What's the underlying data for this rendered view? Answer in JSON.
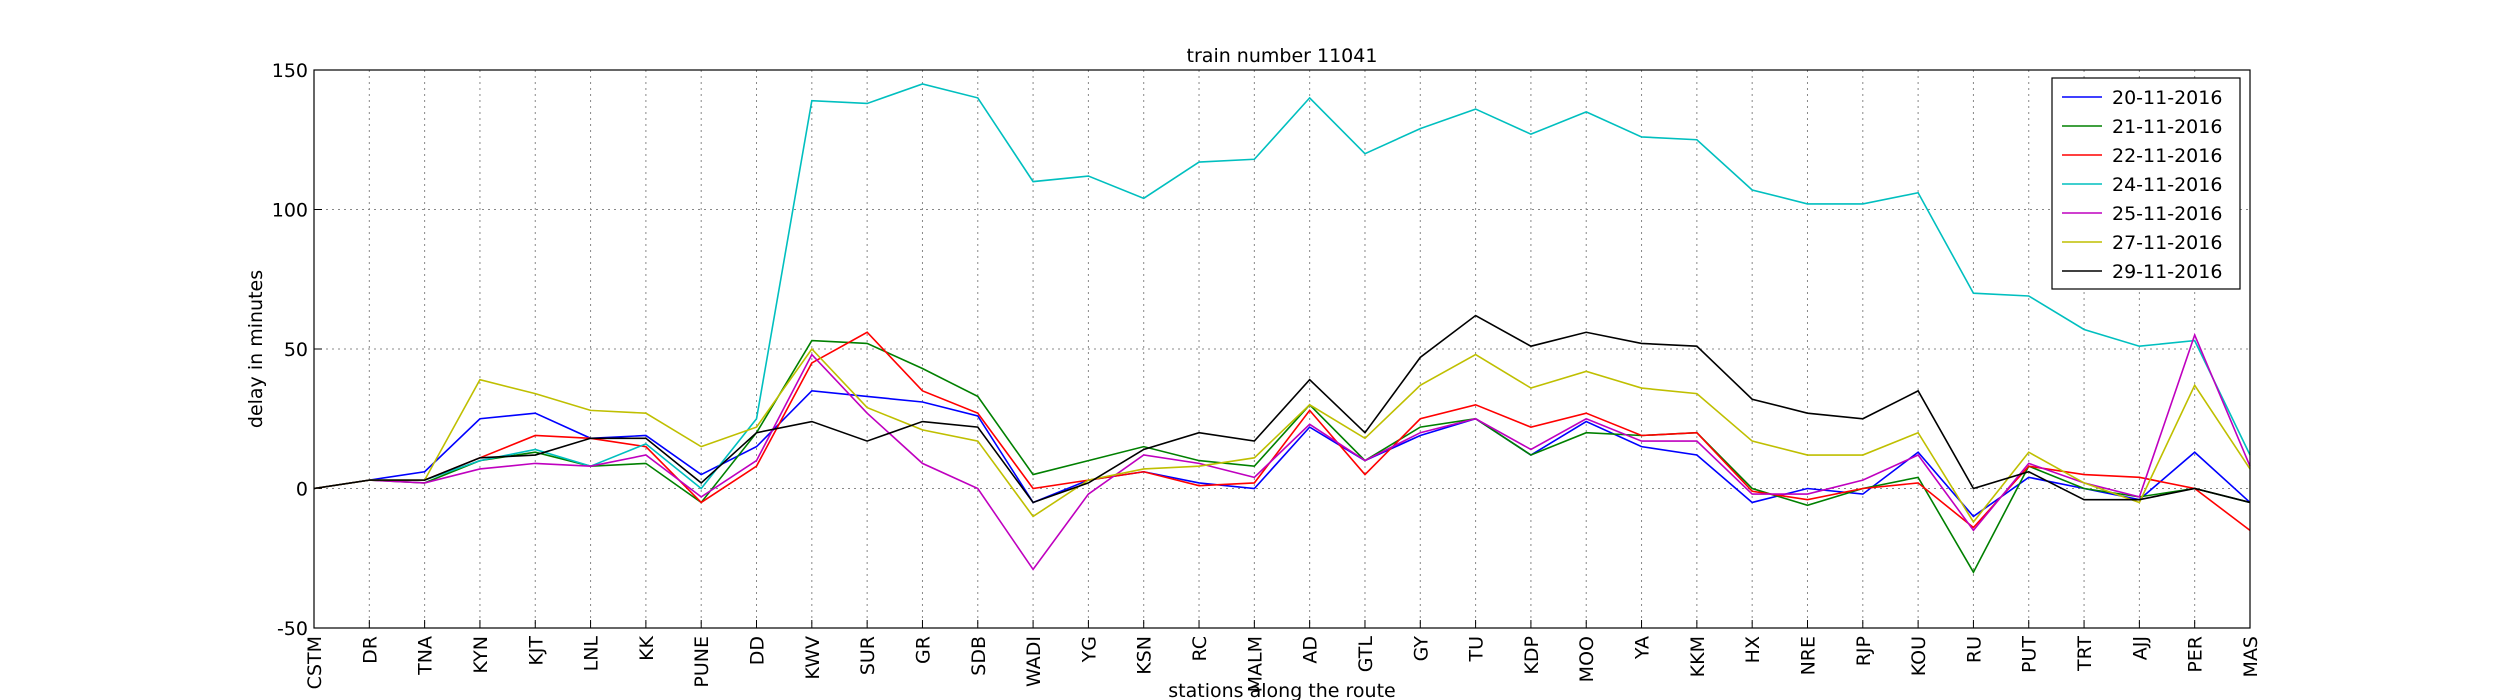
{
  "chart_data": {
    "type": "line",
    "title": "train number 11041",
    "x_label": "stations along the route",
    "y_label": "delay in minutes",
    "categories": [
      "CSTM",
      "DR",
      "TNA",
      "KYN",
      "KJT",
      "LNL",
      "KK",
      "PUNE",
      "DD",
      "KWV",
      "SUR",
      "GR",
      "SDB",
      "WADI",
      "YG",
      "KSN",
      "RC",
      "MALM",
      "AD",
      "GTL",
      "GY",
      "TU",
      "KDP",
      "MOO",
      "YA",
      "KKM",
      "HX",
      "NRE",
      "RJP",
      "KOU",
      "RU",
      "PUT",
      "TRT",
      "AJJ",
      "PER",
      "MAS"
    ],
    "ylim": [
      -50,
      150
    ],
    "yticks": [
      -50,
      0,
      50,
      100,
      150
    ],
    "grid": true,
    "legend": "upper right",
    "series": [
      {
        "name": "20-11-2016",
        "color": "#0000ff",
        "values": [
          0,
          3,
          6,
          25,
          27,
          18,
          19,
          5,
          15,
          35,
          33,
          31,
          26,
          -5,
          3,
          6,
          2,
          0,
          22,
          10,
          19,
          25,
          12,
          24,
          15,
          12,
          -5,
          0,
          -2,
          13,
          -10,
          4,
          0,
          -4,
          13,
          -5
        ]
      },
      {
        "name": "21-11-2016",
        "color": "#008000",
        "values": [
          0,
          3,
          2,
          10,
          13,
          8,
          9,
          -5,
          20,
          53,
          52,
          43,
          33,
          5,
          10,
          15,
          10,
          8,
          30,
          10,
          22,
          25,
          12,
          20,
          19,
          20,
          0,
          -6,
          0,
          4,
          -30,
          8,
          0,
          -3,
          0,
          -5
        ]
      },
      {
        "name": "22-11-2016",
        "color": "#ff0000",
        "values": [
          0,
          3,
          3,
          11,
          19,
          18,
          15,
          -5,
          8,
          45,
          56,
          35,
          27,
          0,
          3,
          6,
          1,
          2,
          28,
          5,
          25,
          30,
          22,
          27,
          19,
          20,
          -1,
          -4,
          0,
          2,
          -14,
          8,
          5,
          4,
          0,
          -15
        ]
      },
      {
        "name": "24-11-2016",
        "color": "#00bfbf",
        "values": [
          0,
          3,
          3,
          10,
          14,
          8,
          16,
          0,
          25,
          139,
          138,
          145,
          140,
          110,
          112,
          104,
          117,
          118,
          140,
          120,
          129,
          136,
          127,
          135,
          126,
          125,
          107,
          102,
          102,
          106,
          70,
          69,
          57,
          51,
          53,
          12
        ]
      },
      {
        "name": "25-11-2016",
        "color": "#bf00bf",
        "values": [
          0,
          3,
          2,
          7,
          9,
          8,
          12,
          -3,
          10,
          48,
          27,
          9,
          0,
          -29,
          -2,
          12,
          9,
          4,
          23,
          10,
          20,
          25,
          14,
          25,
          17,
          17,
          -2,
          -2,
          3,
          12,
          -15,
          9,
          2,
          -3,
          55,
          8
        ]
      },
      {
        "name": "27-11-2016",
        "color": "#bfbf00",
        "values": [
          0,
          3,
          3,
          39,
          34,
          28,
          27,
          15,
          22,
          50,
          29,
          21,
          17,
          -10,
          3,
          7,
          8,
          11,
          30,
          18,
          37,
          48,
          36,
          42,
          36,
          34,
          17,
          12,
          12,
          20,
          -12,
          13,
          2,
          -5,
          37,
          7
        ]
      },
      {
        "name": "29-11-2016",
        "color": "#000000",
        "values": [
          0,
          3,
          3,
          11,
          12,
          18,
          18,
          2,
          20,
          24,
          17,
          24,
          22,
          -5,
          2,
          14,
          20,
          17,
          39,
          20,
          47,
          62,
          51,
          56,
          52,
          51,
          32,
          27,
          25,
          35,
          0,
          6,
          -4,
          -4,
          0,
          -5
        ]
      }
    ]
  }
}
